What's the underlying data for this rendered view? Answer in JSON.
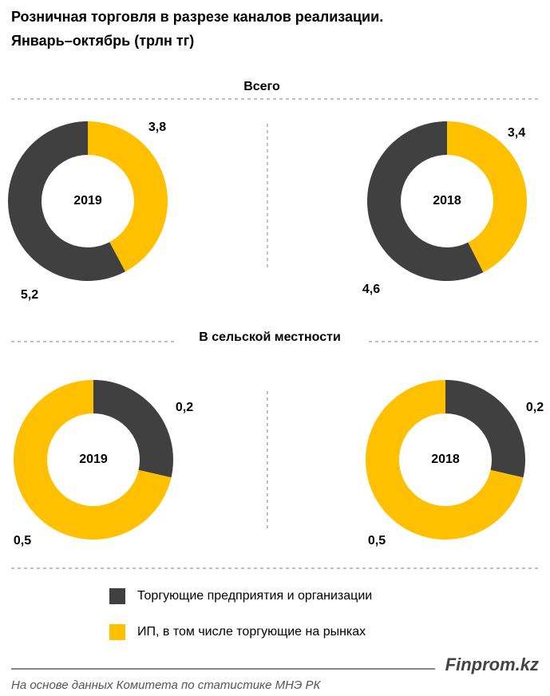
{
  "title": "Розничная торговля в разрезе каналов реализации.",
  "subtitle": "Январь–октябрь (трлн тг)",
  "sections": [
    "Всего",
    "В сельской местности"
  ],
  "legend": [
    {
      "name": "Торгующие предприятия и организации",
      "color": "#404040"
    },
    {
      "name": "ИП, в том числе торгующие на рынках",
      "color": "#ffc000"
    }
  ],
  "brand": "Finprom.kz",
  "source": "На основе данных  Комитета по статистике МНЭ РК",
  "chart_data": [
    {
      "type": "donut",
      "title": "2019",
      "values": [
        3.8,
        5.2
      ],
      "value_labels": [
        "3,8",
        "5,2"
      ],
      "colors": [
        "#ffc000",
        "#404040"
      ]
    },
    {
      "type": "donut",
      "title": "2018",
      "values": [
        3.4,
        4.6
      ],
      "value_labels": [
        "3,4",
        "4,6"
      ],
      "colors": [
        "#ffc000",
        "#404040"
      ]
    },
    {
      "type": "donut",
      "title": "2019",
      "values": [
        0.2,
        0.5
      ],
      "value_labels": [
        "0,2",
        "0,5"
      ],
      "colors": [
        "#404040",
        "#ffc000"
      ]
    },
    {
      "type": "donut",
      "title": "2018",
      "values": [
        0.2,
        0.5
      ],
      "value_labels": [
        "0,2",
        "0,5"
      ],
      "colors": [
        "#404040",
        "#ffc000"
      ]
    }
  ]
}
